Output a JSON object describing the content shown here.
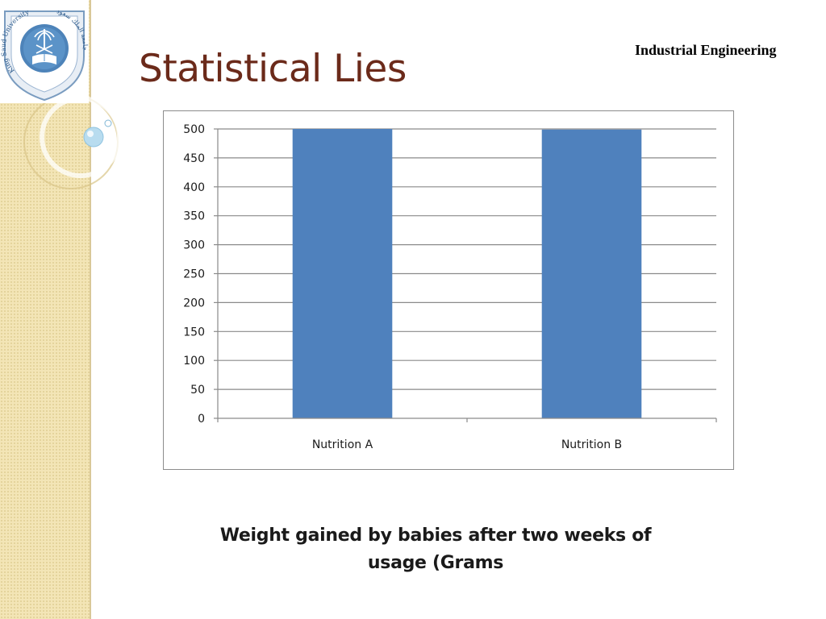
{
  "header": {
    "title": "Statistical Lies",
    "label": "Industrial Engineering",
    "logo": {
      "icon": "university-seal-icon",
      "text_left": "King Saud University 1957",
      "text_right": "جامعة الملك سعود"
    }
  },
  "colors": {
    "title": "#6b2a1a",
    "bar": "#4f81bd",
    "sidebar": "#f3e5b6"
  },
  "chart_data": {
    "type": "bar",
    "categories": [
      "Nutrition A",
      "Nutrition B"
    ],
    "series": [
      {
        "values": [
          500,
          499
        ]
      }
    ],
    "title": "",
    "xlabel": "",
    "ylabel": "",
    "ylim": [
      0,
      500
    ],
    "yticks": [
      0,
      50,
      100,
      150,
      200,
      250,
      300,
      350,
      400,
      450,
      500
    ],
    "grid": true,
    "legend": "none"
  },
  "caption": {
    "line1": "Weight gained by babies after  two weeks of",
    "line2": "usage (Grams"
  }
}
